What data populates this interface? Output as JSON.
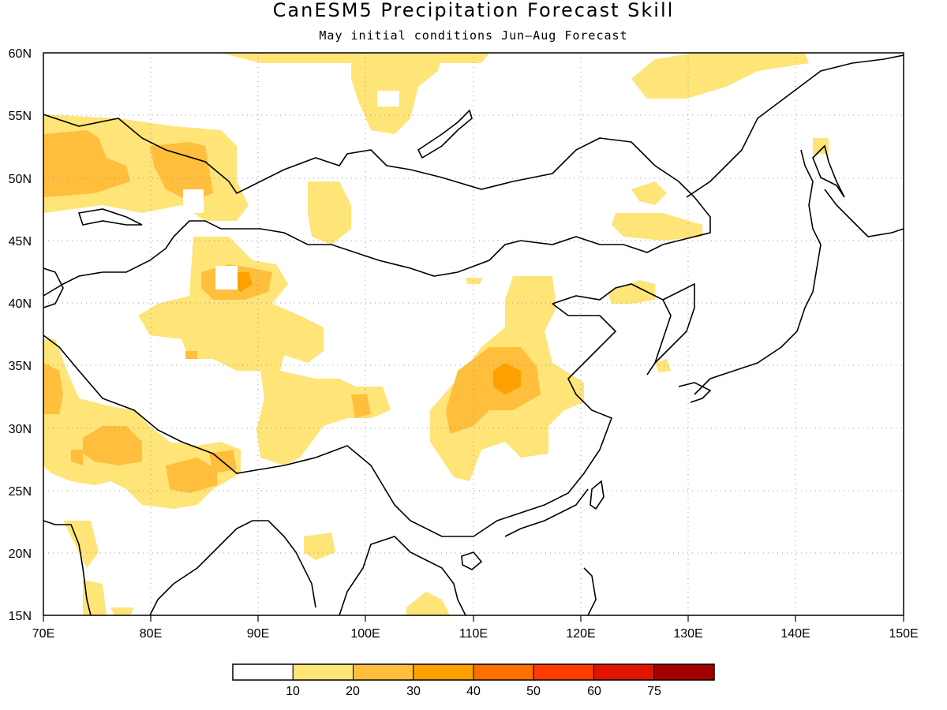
{
  "title": "CanESM5 Precipitation Forecast Skill",
  "subtitle": "May initial conditions  Jun–Aug Forecast",
  "map": {
    "lon_range": [
      70,
      150
    ],
    "lat_range": [
      15,
      60
    ],
    "lon_ticks": [
      "70E",
      "80E",
      "90E",
      "100E",
      "110E",
      "120E",
      "130E",
      "140E",
      "150E"
    ],
    "lat_ticks": [
      "60N",
      "55N",
      "50N",
      "45N",
      "40N",
      "35N",
      "30N",
      "25N",
      "20N",
      "15N"
    ],
    "grid": true
  },
  "colorbar": {
    "colors": [
      "#ffffff",
      "#ffe478",
      "#ffbe3c",
      "#ffa000",
      "#ff6e00",
      "#ff3c00",
      "#e11400",
      "#a50000"
    ],
    "labels": [
      "10",
      "20",
      "30",
      "40",
      "50",
      "60",
      "75"
    ]
  }
}
